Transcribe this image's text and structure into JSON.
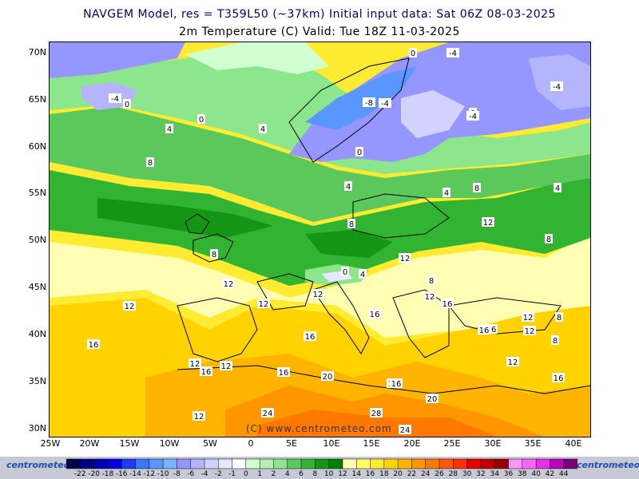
{
  "header": {
    "title_line1": "NAVGEM Model, res = T359L50 (~37km)    Initial input data: Sat 06Z 08-03-2025",
    "title_line2": "2m Temperature (C)  Valid: Tue 18Z 11-03-2025"
  },
  "axes": {
    "lat_labels": [
      "70N",
      "65N",
      "60N",
      "55N",
      "50N",
      "45N",
      "40N",
      "35N",
      "30N"
    ],
    "lon_labels": [
      "25W",
      "20W",
      "15W",
      "10W",
      "5W",
      "0",
      "5E",
      "10E",
      "15E",
      "20E",
      "25E",
      "30E",
      "35E",
      "40E"
    ]
  },
  "contour_labels": [
    {
      "text": "-4"
    },
    {
      "text": "0"
    },
    {
      "text": "4"
    },
    {
      "text": "0"
    },
    {
      "text": "4"
    },
    {
      "text": "8"
    },
    {
      "text": "0"
    },
    {
      "text": "-4"
    },
    {
      "text": "-8"
    },
    {
      "text": "-4"
    },
    {
      "text": "-4"
    },
    {
      "text": "0"
    },
    {
      "text": "-4"
    },
    {
      "text": "0"
    },
    {
      "text": "4"
    },
    {
      "text": "4"
    },
    {
      "text": "8"
    },
    {
      "text": "4"
    },
    {
      "text": "12"
    },
    {
      "text": "8"
    },
    {
      "text": "8"
    },
    {
      "text": "8"
    },
    {
      "text": "12"
    },
    {
      "text": "12"
    },
    {
      "text": "12"
    },
    {
      "text": "4"
    },
    {
      "text": "8"
    },
    {
      "text": "0"
    },
    {
      "text": "12"
    },
    {
      "text": "16"
    },
    {
      "text": "12"
    },
    {
      "text": "16"
    },
    {
      "text": "16"
    },
    {
      "text": "12"
    },
    {
      "text": "8"
    },
    {
      "text": "16"
    },
    {
      "text": "12"
    },
    {
      "text": "16"
    },
    {
      "text": "12"
    },
    {
      "text": "12"
    },
    {
      "text": "16"
    },
    {
      "text": "16"
    },
    {
      "text": "16"
    },
    {
      "text": "12"
    },
    {
      "text": "16"
    },
    {
      "text": "20"
    },
    {
      "text": "16"
    },
    {
      "text": "20"
    },
    {
      "text": "24"
    },
    {
      "text": "28"
    },
    {
      "text": "24"
    },
    {
      "text": "12"
    },
    {
      "text": "8"
    },
    {
      "text": "12"
    },
    {
      "text": "16"
    }
  ],
  "copyright": "(C) www.centrometeo.com",
  "legend": {
    "ticks": [
      "-22",
      "-20",
      "-18",
      "-16",
      "-14",
      "-12",
      "-10",
      "-8",
      "-6",
      "-4",
      "-2",
      "-1",
      "0",
      "1",
      "2",
      "4",
      "6",
      "8",
      "10",
      "12",
      "14",
      "16",
      "18",
      "20",
      "22",
      "24",
      "26",
      "28",
      "30",
      "32",
      "34",
      "36",
      "38",
      "40",
      "42",
      "44"
    ],
    "colors": [
      "#00004a",
      "#000080",
      "#0000b0",
      "#0000e0",
      "#1e3cff",
      "#3c78ff",
      "#5a96ff",
      "#78b4ff",
      "#9696ff",
      "#b4b4ff",
      "#d2d2ff",
      "#e6e6ff",
      "#ffffff",
      "#d2ffd2",
      "#b4f0b4",
      "#8ce68c",
      "#5ac85a",
      "#32b432",
      "#149614",
      "#008200",
      "#ffffb4",
      "#ffff64",
      "#ffeb32",
      "#ffd200",
      "#ffb400",
      "#ff9600",
      "#ff7800",
      "#ff5a00",
      "#ff3200",
      "#e60000",
      "#be0000",
      "#960000",
      "#ff96ff",
      "#ff64ff",
      "#e632e6",
      "#be00be",
      "#780078"
    ],
    "logo_left": "centrometeo",
    "logo_right": "centrometeo"
  },
  "colors": {
    "header_text": "#000080",
    "ocean_warm": "#ffd200",
    "land_green": "#32b432",
    "cold_blue": "#9696ff"
  }
}
